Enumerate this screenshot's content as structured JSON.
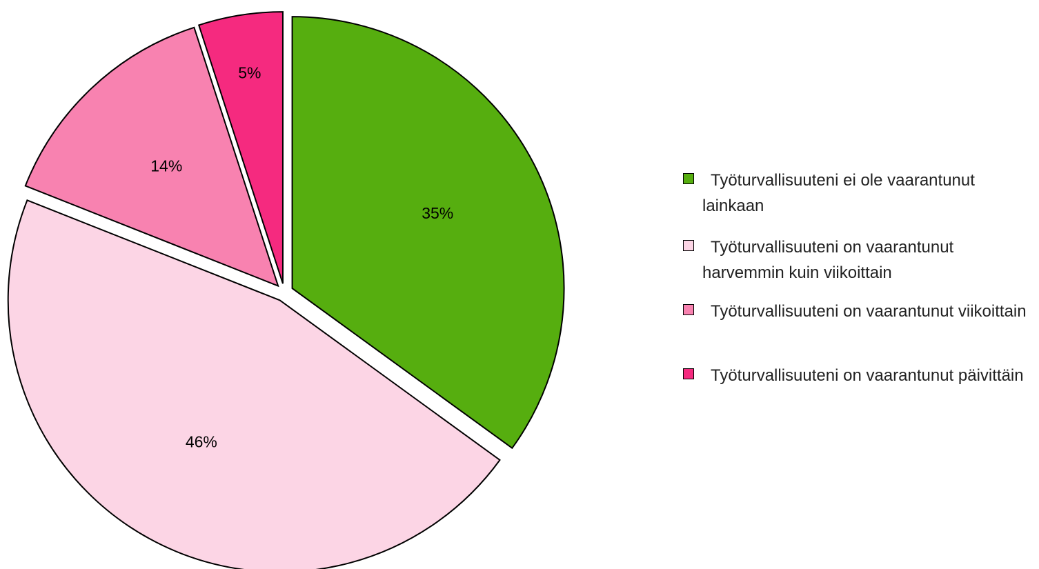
{
  "chart_data": {
    "type": "pie",
    "categories": [
      "Työturvallisuuteni ei ole vaarantunut lainkaan",
      "Työturvallisuuteni on vaarantunut harvemmin kuin viikoittain",
      "Työturvallisuuteni on vaarantunut viikoittain",
      "Työturvallisuuteni on vaarantunut päivittäin"
    ],
    "values": [
      35,
      46,
      14,
      5
    ],
    "value_labels": [
      "35%",
      "46%",
      "14%",
      "5%"
    ],
    "colors": [
      "#56ae0f",
      "#fcd5e5",
      "#f882b0",
      "#f52a7f"
    ],
    "legend": "right"
  }
}
